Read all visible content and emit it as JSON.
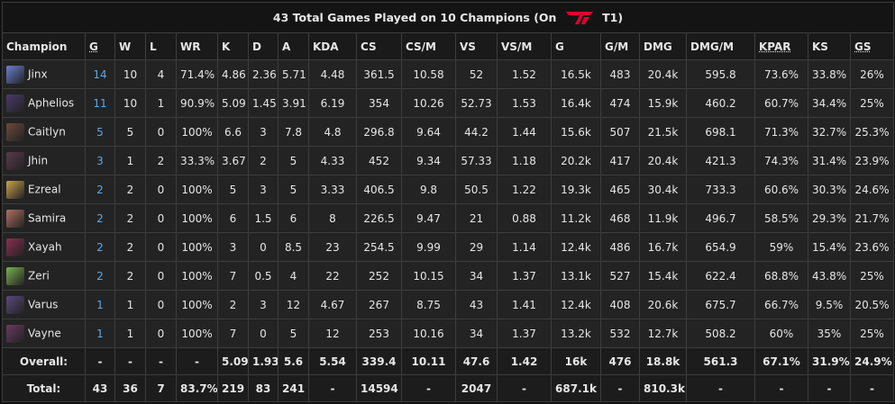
{
  "title": {
    "text": "43 Total Games Played on 10 Champions (On",
    "team": "T1)"
  },
  "table": {
    "headers": [
      "Champion",
      "G",
      "W",
      "L",
      "WR",
      "K",
      "D",
      "A",
      "KDA",
      "CS",
      "CS/M",
      "VS",
      "VS/M",
      "G",
      "G/M",
      "DMG",
      "DMG/M",
      "KPAR",
      "KS",
      "GS"
    ],
    "rows": [
      [
        "Jinx",
        "14",
        "10",
        "4",
        "71.4%",
        "4.86",
        "2.36",
        "5.71",
        "4.48",
        "361.5",
        "10.58",
        "52",
        "1.52",
        "16.5k",
        "483",
        "20.4k",
        "595.8",
        "73.6%",
        "33.8%",
        "26%"
      ],
      [
        "Aphelios",
        "11",
        "10",
        "1",
        "90.9%",
        "5.09",
        "1.45",
        "3.91",
        "6.19",
        "354",
        "10.26",
        "52.73",
        "1.53",
        "16.4k",
        "474",
        "15.9k",
        "460.2",
        "60.7%",
        "34.4%",
        "25%"
      ],
      [
        "Caitlyn",
        "5",
        "5",
        "0",
        "100%",
        "6.6",
        "3",
        "7.8",
        "4.8",
        "296.8",
        "9.64",
        "44.2",
        "1.44",
        "15.6k",
        "507",
        "21.5k",
        "698.1",
        "71.3%",
        "32.7%",
        "25.3%"
      ],
      [
        "Jhin",
        "3",
        "1",
        "2",
        "33.3%",
        "3.67",
        "2",
        "5",
        "4.33",
        "452",
        "9.34",
        "57.33",
        "1.18",
        "20.2k",
        "417",
        "20.4k",
        "421.3",
        "74.3%",
        "31.4%",
        "23.9%"
      ],
      [
        "Ezreal",
        "2",
        "2",
        "0",
        "100%",
        "5",
        "3",
        "5",
        "3.33",
        "406.5",
        "9.8",
        "50.5",
        "1.22",
        "19.3k",
        "465",
        "30.4k",
        "733.3",
        "60.6%",
        "30.3%",
        "24.6%"
      ],
      [
        "Samira",
        "2",
        "2",
        "0",
        "100%",
        "6",
        "1.5",
        "6",
        "8",
        "226.5",
        "9.47",
        "21",
        "0.88",
        "11.2k",
        "468",
        "11.9k",
        "496.7",
        "58.5%",
        "29.3%",
        "21.7%"
      ],
      [
        "Xayah",
        "2",
        "2",
        "0",
        "100%",
        "3",
        "0",
        "8.5",
        "23",
        "254.5",
        "9.99",
        "29",
        "1.14",
        "12.4k",
        "486",
        "16.7k",
        "654.9",
        "59%",
        "15.4%",
        "23.6%"
      ],
      [
        "Zeri",
        "2",
        "2",
        "0",
        "100%",
        "7",
        "0.5",
        "4",
        "22",
        "252",
        "10.15",
        "34",
        "1.37",
        "13.1k",
        "527",
        "15.4k",
        "622.4",
        "68.8%",
        "43.8%",
        "25%"
      ],
      [
        "Varus",
        "1",
        "1",
        "0",
        "100%",
        "2",
        "3",
        "12",
        "4.67",
        "267",
        "8.75",
        "43",
        "1.41",
        "12.4k",
        "408",
        "20.6k",
        "675.7",
        "66.7%",
        "9.5%",
        "20.5%"
      ],
      [
        "Vayne",
        "1",
        "1",
        "0",
        "100%",
        "7",
        "0",
        "5",
        "12",
        "253",
        "10.16",
        "34",
        "1.37",
        "13.2k",
        "532",
        "12.7k",
        "508.2",
        "60%",
        "35%",
        "25%"
      ]
    ],
    "overall": [
      "Overall:",
      "-",
      "-",
      "-",
      "-",
      "5.09",
      "1.93",
      "5.6",
      "5.54",
      "339.4",
      "10.11",
      "47.6",
      "1.42",
      "16k",
      "476",
      "18.8k",
      "561.3",
      "67.1%",
      "31.9%",
      "24.9%"
    ],
    "total": [
      "Total:",
      "43",
      "36",
      "7",
      "83.7%",
      "219",
      "83",
      "241",
      "-",
      "14594",
      "-",
      "2047",
      "-",
      "687.1k",
      "-",
      "810.3k",
      "-",
      "-",
      "-",
      "-"
    ]
  }
}
